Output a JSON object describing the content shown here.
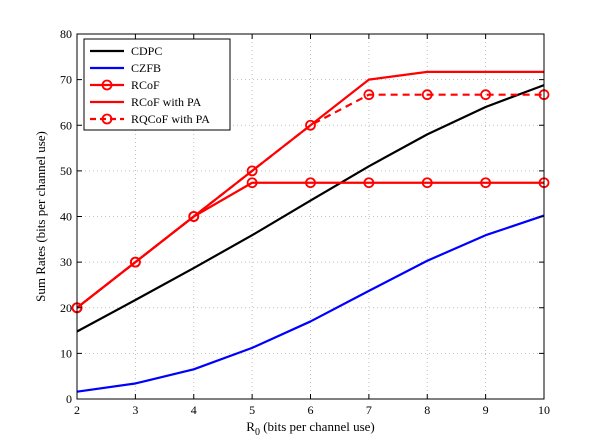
{
  "chart_data": {
    "type": "line",
    "title": "",
    "xlabel": "R",
    "xlabel_sub": "0",
    "xlabel_rest": " (bits per channel use)",
    "ylabel": "Sum Rates (bits per channel use)",
    "xlim": [
      2,
      10
    ],
    "ylim": [
      0,
      80
    ],
    "xticks": [
      2,
      3,
      4,
      5,
      6,
      7,
      8,
      9,
      10
    ],
    "yticks": [
      0,
      10,
      20,
      30,
      40,
      50,
      60,
      70,
      80
    ],
    "grid": true,
    "legend_position": "top-left",
    "x": [
      2,
      3,
      4,
      5,
      6,
      7,
      8,
      9,
      10
    ],
    "series": [
      {
        "name": "CDPC",
        "color": "#000000",
        "dash": "solid",
        "marker": "none",
        "values": [
          14.8,
          21.7,
          28.7,
          35.9,
          43.5,
          51.0,
          58.0,
          64.0,
          68.8
        ]
      },
      {
        "name": "CZFB",
        "color": "#0000ff",
        "dash": "solid",
        "marker": "none",
        "values": [
          1.6,
          3.4,
          6.5,
          11.2,
          17.0,
          23.7,
          30.3,
          35.9,
          40.2
        ]
      },
      {
        "name": "RCoF",
        "color": "#ff0000",
        "dash": "solid",
        "marker": "circle",
        "values": [
          20.0,
          30.0,
          40.0,
          47.4,
          47.4,
          47.4,
          47.4,
          47.4,
          47.4
        ]
      },
      {
        "name": "RCoF with PA",
        "color": "#ff0000",
        "dash": "solid",
        "marker": "none",
        "values": [
          20.0,
          30.0,
          40.0,
          50.0,
          60.0,
          70.0,
          71.7,
          71.7,
          71.7
        ]
      },
      {
        "name": "RQCoF with PA",
        "color": "#ff0000",
        "dash": "dashed",
        "marker": "circle",
        "values": [
          20.0,
          30.0,
          40.0,
          50.0,
          60.0,
          66.7,
          66.7,
          66.7,
          66.7
        ]
      }
    ]
  }
}
